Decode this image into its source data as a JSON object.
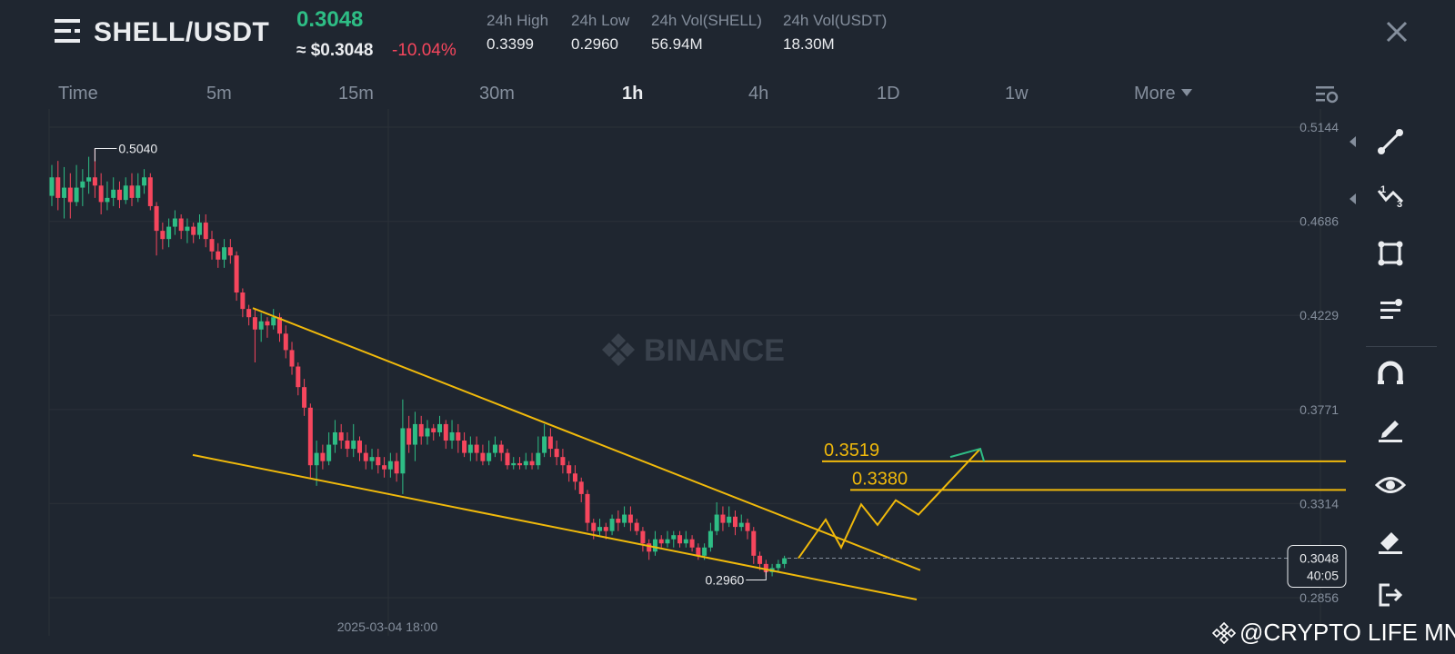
{
  "header": {
    "pair": "SHELL/USDT",
    "last_price": "0.3048",
    "usd_price": "≈ $0.3048",
    "change_pct": "-10.04%",
    "stats": [
      {
        "label": "24h High",
        "value": "0.3399"
      },
      {
        "label": "24h Low",
        "value": "0.2960"
      },
      {
        "label": "24h Vol(SHELL)",
        "value": "56.94M"
      },
      {
        "label": "24h Vol(USDT)",
        "value": "18.30M"
      }
    ]
  },
  "timeframes": {
    "items": [
      "Time",
      "5m",
      "15m",
      "30m",
      "1h",
      "4h",
      "1D",
      "1w"
    ],
    "active": "1h",
    "more_label": "More"
  },
  "chart_data": {
    "type": "candlestick",
    "pair": "SHELL/USDT",
    "interval": "1h",
    "y_ticks": [
      "0.5144",
      "0.4686",
      "0.4229",
      "0.3771",
      "0.3314",
      "0.2856"
    ],
    "ylim": [
      0.2856,
      0.5144
    ],
    "x_tick_label": "2025-03-04 18:00",
    "high_marker": "0.5040",
    "low_marker": "0.2960",
    "current_price": "0.3048",
    "countdown": "40:05",
    "level_labels": [
      "0.3519",
      "0.3380"
    ],
    "levels": [
      0.3519,
      0.338
    ],
    "watermark": "BINANCE",
    "candles": [
      [
        0.481,
        0.49,
        0.496,
        0.476
      ],
      [
        0.49,
        0.48,
        0.498,
        0.474
      ],
      [
        0.48,
        0.485,
        0.495,
        0.47
      ],
      [
        0.485,
        0.478,
        0.492,
        0.47
      ],
      [
        0.478,
        0.485,
        0.496,
        0.476
      ],
      [
        0.485,
        0.488,
        0.494,
        0.476
      ],
      [
        0.488,
        0.49,
        0.5,
        0.482
      ],
      [
        0.49,
        0.486,
        0.504,
        0.48
      ],
      [
        0.486,
        0.478,
        0.492,
        0.472
      ],
      [
        0.478,
        0.48,
        0.488,
        0.474
      ],
      [
        0.48,
        0.484,
        0.49,
        0.476
      ],
      [
        0.484,
        0.479,
        0.488,
        0.475
      ],
      [
        0.479,
        0.486,
        0.49,
        0.477
      ],
      [
        0.486,
        0.48,
        0.492,
        0.476
      ],
      [
        0.48,
        0.486,
        0.492,
        0.478
      ],
      [
        0.486,
        0.49,
        0.494,
        0.482
      ],
      [
        0.49,
        0.476,
        0.492,
        0.474
      ],
      [
        0.476,
        0.464,
        0.478,
        0.452
      ],
      [
        0.464,
        0.46,
        0.468,
        0.455
      ],
      [
        0.46,
        0.466,
        0.47,
        0.456
      ],
      [
        0.466,
        0.47,
        0.474,
        0.462
      ],
      [
        0.47,
        0.464,
        0.472,
        0.46
      ],
      [
        0.464,
        0.466,
        0.47,
        0.458
      ],
      [
        0.466,
        0.462,
        0.468,
        0.458
      ],
      [
        0.462,
        0.468,
        0.472,
        0.46
      ],
      [
        0.468,
        0.46,
        0.472,
        0.456
      ],
      [
        0.46,
        0.454,
        0.464,
        0.45
      ],
      [
        0.454,
        0.45,
        0.458,
        0.446
      ],
      [
        0.45,
        0.456,
        0.46,
        0.446
      ],
      [
        0.456,
        0.452,
        0.46,
        0.448
      ],
      [
        0.452,
        0.434,
        0.454,
        0.43
      ],
      [
        0.434,
        0.426,
        0.436,
        0.422
      ],
      [
        0.426,
        0.422,
        0.428,
        0.418
      ],
      [
        0.422,
        0.416,
        0.426,
        0.4
      ],
      [
        0.416,
        0.42,
        0.424,
        0.41
      ],
      [
        0.42,
        0.418,
        0.422,
        0.412
      ],
      [
        0.418,
        0.422,
        0.426,
        0.416
      ],
      [
        0.422,
        0.414,
        0.424,
        0.41
      ],
      [
        0.414,
        0.406,
        0.418,
        0.402
      ],
      [
        0.406,
        0.398,
        0.41,
        0.394
      ],
      [
        0.398,
        0.388,
        0.4,
        0.384
      ],
      [
        0.388,
        0.378,
        0.392,
        0.374
      ],
      [
        0.378,
        0.35,
        0.38,
        0.344
      ],
      [
        0.35,
        0.356,
        0.362,
        0.34
      ],
      [
        0.356,
        0.352,
        0.36,
        0.348
      ],
      [
        0.352,
        0.36,
        0.366,
        0.35
      ],
      [
        0.36,
        0.366,
        0.372,
        0.356
      ],
      [
        0.366,
        0.362,
        0.37,
        0.358
      ],
      [
        0.362,
        0.358,
        0.366,
        0.354
      ],
      [
        0.358,
        0.362,
        0.37,
        0.354
      ],
      [
        0.362,
        0.356,
        0.364,
        0.352
      ],
      [
        0.356,
        0.352,
        0.36,
        0.348
      ],
      [
        0.352,
        0.354,
        0.358,
        0.348
      ],
      [
        0.354,
        0.35,
        0.358,
        0.346
      ],
      [
        0.35,
        0.348,
        0.354,
        0.344
      ],
      [
        0.348,
        0.352,
        0.356,
        0.344
      ],
      [
        0.352,
        0.346,
        0.356,
        0.342
      ],
      [
        0.346,
        0.368,
        0.382,
        0.336
      ],
      [
        0.368,
        0.36,
        0.374,
        0.356
      ],
      [
        0.36,
        0.37,
        0.376,
        0.352
      ],
      [
        0.37,
        0.364,
        0.374,
        0.36
      ],
      [
        0.364,
        0.368,
        0.372,
        0.36
      ],
      [
        0.368,
        0.366,
        0.37,
        0.362
      ],
      [
        0.366,
        0.37,
        0.374,
        0.364
      ],
      [
        0.37,
        0.362,
        0.372,
        0.358
      ],
      [
        0.362,
        0.366,
        0.372,
        0.358
      ],
      [
        0.366,
        0.362,
        0.37,
        0.356
      ],
      [
        0.362,
        0.356,
        0.366,
        0.354
      ],
      [
        0.356,
        0.36,
        0.364,
        0.352
      ],
      [
        0.36,
        0.356,
        0.364,
        0.352
      ],
      [
        0.356,
        0.352,
        0.36,
        0.35
      ],
      [
        0.352,
        0.356,
        0.362,
        0.35
      ],
      [
        0.356,
        0.36,
        0.364,
        0.354
      ],
      [
        0.36,
        0.356,
        0.362,
        0.352
      ],
      [
        0.356,
        0.35,
        0.358,
        0.348
      ],
      [
        0.35,
        0.351,
        0.354,
        0.348
      ],
      [
        0.351,
        0.35,
        0.354,
        0.348
      ],
      [
        0.35,
        0.352,
        0.356,
        0.348
      ],
      [
        0.352,
        0.35,
        0.356,
        0.348
      ],
      [
        0.35,
        0.356,
        0.364,
        0.348
      ],
      [
        0.356,
        0.364,
        0.37,
        0.354
      ],
      [
        0.364,
        0.358,
        0.368,
        0.354
      ],
      [
        0.358,
        0.354,
        0.362,
        0.35
      ],
      [
        0.354,
        0.35,
        0.358,
        0.346
      ],
      [
        0.35,
        0.346,
        0.352,
        0.342
      ],
      [
        0.346,
        0.342,
        0.35,
        0.338
      ],
      [
        0.342,
        0.336,
        0.344,
        0.332
      ],
      [
        0.336,
        0.322,
        0.338,
        0.318
      ],
      [
        0.322,
        0.318,
        0.324,
        0.314
      ],
      [
        0.318,
        0.32,
        0.324,
        0.316
      ],
      [
        0.32,
        0.318,
        0.322,
        0.314
      ],
      [
        0.318,
        0.324,
        0.326,
        0.316
      ],
      [
        0.324,
        0.322,
        0.328,
        0.318
      ],
      [
        0.322,
        0.326,
        0.33,
        0.32
      ],
      [
        0.326,
        0.322,
        0.33,
        0.318
      ],
      [
        0.322,
        0.318,
        0.324,
        0.316
      ],
      [
        0.318,
        0.312,
        0.32,
        0.308
      ],
      [
        0.312,
        0.308,
        0.314,
        0.304
      ],
      [
        0.308,
        0.314,
        0.318,
        0.306
      ],
      [
        0.314,
        0.312,
        0.316,
        0.31
      ],
      [
        0.312,
        0.314,
        0.318,
        0.31
      ],
      [
        0.314,
        0.316,
        0.318,
        0.31
      ],
      [
        0.316,
        0.312,
        0.318,
        0.31
      ],
      [
        0.312,
        0.314,
        0.318,
        0.31
      ],
      [
        0.314,
        0.31,
        0.316,
        0.308
      ],
      [
        0.31,
        0.306,
        0.312,
        0.304
      ],
      [
        0.306,
        0.31,
        0.312,
        0.304
      ],
      [
        0.31,
        0.318,
        0.322,
        0.308
      ],
      [
        0.318,
        0.326,
        0.332,
        0.316
      ],
      [
        0.326,
        0.322,
        0.33,
        0.318
      ],
      [
        0.322,
        0.325,
        0.33,
        0.32
      ],
      [
        0.325,
        0.32,
        0.328,
        0.316
      ],
      [
        0.32,
        0.322,
        0.326,
        0.318
      ],
      [
        0.322,
        0.318,
        0.324,
        0.314
      ],
      [
        0.318,
        0.306,
        0.32,
        0.302
      ],
      [
        0.306,
        0.302,
        0.308,
        0.299
      ],
      [
        0.302,
        0.298,
        0.304,
        0.296
      ],
      [
        0.298,
        0.3,
        0.302,
        0.296
      ],
      [
        0.3,
        0.302,
        0.304,
        0.298
      ],
      [
        0.302,
        0.3048,
        0.306,
        0.3
      ]
    ]
  },
  "toolbar": {
    "tools": [
      "line-tool-icon",
      "pattern-tool-icon",
      "shape-tool-icon",
      "text-tool-icon",
      "magnet-icon",
      "brush-icon",
      "eye-icon",
      "eraser-icon",
      "exit-icon"
    ]
  },
  "watermark_author": "@CRYPTO LIFE MNE"
}
